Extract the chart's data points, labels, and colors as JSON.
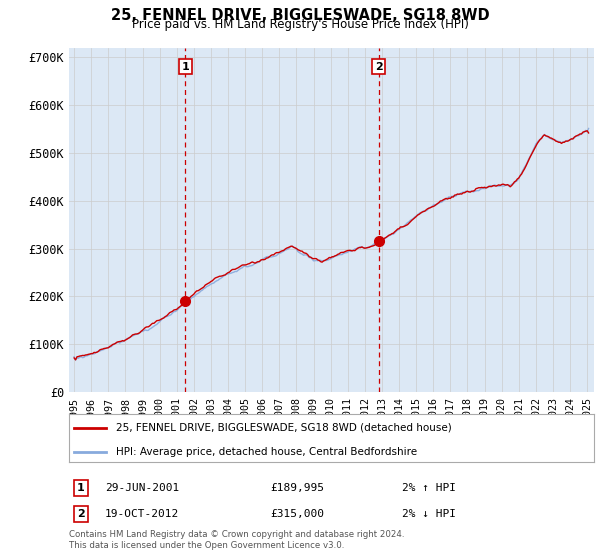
{
  "title": "25, FENNEL DRIVE, BIGGLESWADE, SG18 8WD",
  "subtitle": "Price paid vs. HM Land Registry's House Price Index (HPI)",
  "legend_line1": "25, FENNEL DRIVE, BIGGLESWADE, SG18 8WD (detached house)",
  "legend_line2": "HPI: Average price, detached house, Central Bedfordshire",
  "purchase1_label": "1",
  "purchase1_date": "29-JUN-2001",
  "purchase1_price": "£189,995",
  "purchase1_hpi": "2% ↑ HPI",
  "purchase1_year": 2001.4958,
  "purchase1_value": 189995,
  "purchase2_label": "2",
  "purchase2_date": "19-OCT-2012",
  "purchase2_price": "£315,000",
  "purchase2_hpi": "2% ↓ HPI",
  "purchase2_year": 2012.8,
  "purchase2_value": 315000,
  "footer1": "Contains HM Land Registry data © Crown copyright and database right 2024.",
  "footer2": "This data is licensed under the Open Government Licence v3.0.",
  "line_color_red": "#cc0000",
  "line_color_blue": "#88aadd",
  "marker_color_red": "#cc0000",
  "vline_color": "#cc0000",
  "bg_color": "#ffffff",
  "plot_bg_color": "#dce8f5",
  "grid_color": "#cccccc",
  "ytick_labels": [
    "£0",
    "£100K",
    "£200K",
    "£300K",
    "£400K",
    "£500K",
    "£600K",
    "£700K"
  ],
  "ytick_vals": [
    0,
    100000,
    200000,
    300000,
    400000,
    500000,
    600000,
    700000
  ]
}
